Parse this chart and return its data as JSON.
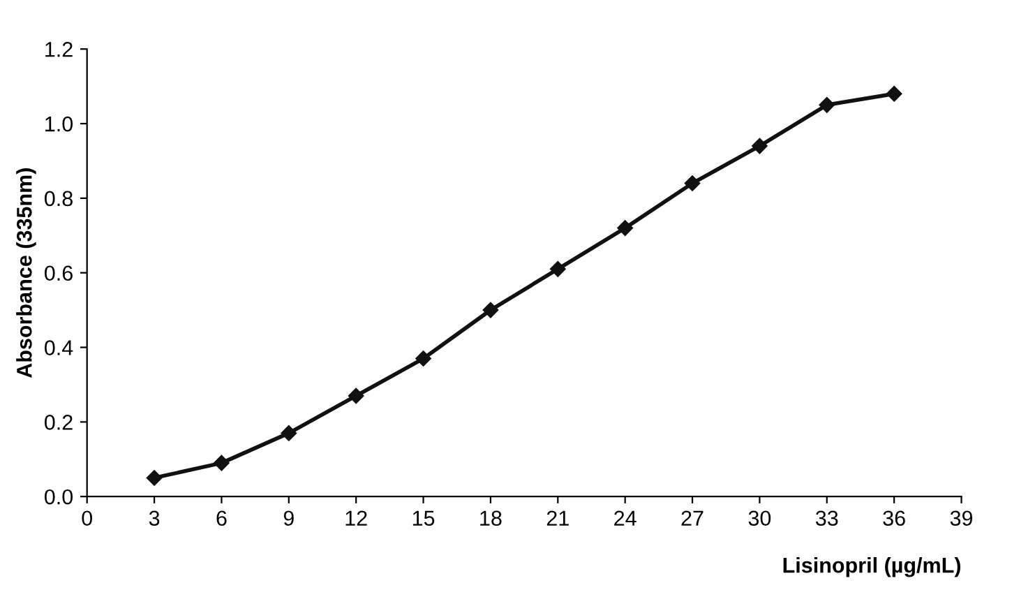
{
  "chart_data": {
    "type": "line",
    "xlabel": "Lisinopril (µg/mL)",
    "ylabel": "Absorbance (335nm)",
    "x": [
      3,
      6,
      9,
      12,
      15,
      18,
      21,
      24,
      27,
      30,
      33,
      36
    ],
    "series": [
      {
        "color": "#111111",
        "values": [
          0.05,
          0.09,
          0.17,
          0.27,
          0.37,
          0.5,
          0.61,
          0.72,
          0.84,
          0.94,
          1.05,
          1.08
        ]
      }
    ],
    "xlim": [
      0,
      39
    ],
    "xticks": [
      0,
      3,
      6,
      9,
      12,
      15,
      18,
      21,
      24,
      27,
      30,
      33,
      36,
      39
    ],
    "ylim": [
      0,
      1.2
    ],
    "yticks": [
      {
        "value": 0,
        "label": "0.0"
      },
      {
        "value": 0.2,
        "label": "0.2"
      },
      {
        "value": 0.4,
        "label": "0.4"
      },
      {
        "value": 0.6,
        "label": "0.6"
      },
      {
        "value": 0.8,
        "label": "0.8"
      },
      {
        "value": 1.0,
        "label": "1.0"
      },
      {
        "value": 1.2,
        "label": "1.2"
      }
    ],
    "grid": false,
    "marker": "diamond",
    "line_style": "solid"
  }
}
